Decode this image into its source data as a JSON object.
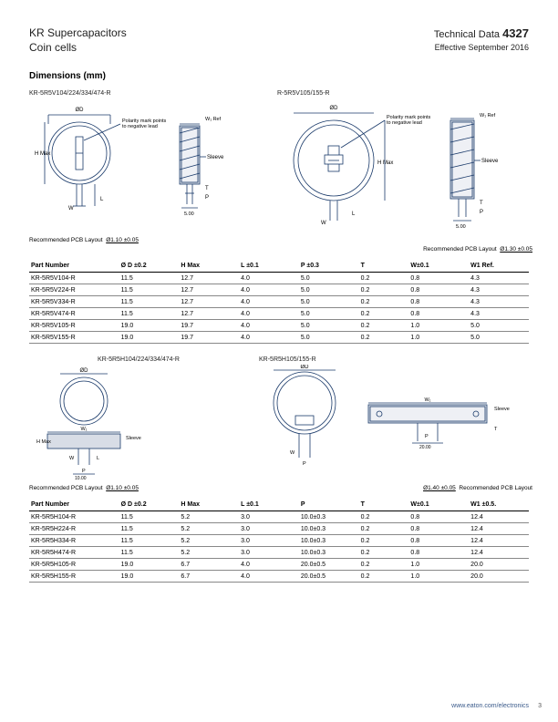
{
  "header": {
    "title_line1": "KR Supercapacitors",
    "title_line2": "Coin cells",
    "tech_data_label": "Technical Data",
    "tech_data_number": "4327",
    "effective": "Effective September 2016"
  },
  "section_title": "Dimensions (mm)",
  "diagrams_top": {
    "left_label": "KR-5R5V104/224/334/474-R",
    "right_label": "R-5R5V105/155-R",
    "polarity_note": "Polarity mark points\nto negative lead",
    "sleeve_label": "Sleeve",
    "w1_ref": "W₁ Ref",
    "hmax": "H Max",
    "phi_d": "ØD",
    "pcb_left": "Recommended PCB Layout",
    "pcb_left_hole": "Ø1.10 ±0.05",
    "pcb_right": "Recommended PCB Layout",
    "pcb_right_hole": "Ø1.30 ±0.05",
    "dim_T": "T",
    "dim_P": "P",
    "dim_L": "L",
    "dim_W": "W",
    "dim_500": "5.00"
  },
  "table1": {
    "columns": [
      "Part Number",
      "Ø D ±0.2",
      "H Max",
      "L ±0.1",
      "P ±0.3",
      "T",
      "W±0.1",
      "W1 Ref."
    ],
    "rows": [
      [
        "KR-5R5V104-R",
        "11.5",
        "12.7",
        "4.0",
        "5.0",
        "0.2",
        "0.8",
        "4.3"
      ],
      [
        "KR-5R5V224-R",
        "11.5",
        "12.7",
        "4.0",
        "5.0",
        "0.2",
        "0.8",
        "4.3"
      ],
      [
        "KR-5R5V334-R",
        "11.5",
        "12.7",
        "4.0",
        "5.0",
        "0.2",
        "0.8",
        "4.3"
      ],
      [
        "KR-5R5V474-R",
        "11.5",
        "12.7",
        "4.0",
        "5.0",
        "0.2",
        "0.8",
        "4.3"
      ],
      [
        "KR-5R5V105-R",
        "19.0",
        "19.7",
        "4.0",
        "5.0",
        "0.2",
        "1.0",
        "5.0"
      ],
      [
        "KR-5R5V155-R",
        "19.0",
        "19.7",
        "4.0",
        "5.0",
        "0.2",
        "1.0",
        "5.0"
      ]
    ]
  },
  "diagrams_bottom": {
    "left_label": "KR-5R5H104/224/334/474-R",
    "right_label": "KR-5R5H105/155-R",
    "sleeve_label": "Sleeve",
    "w1_label": "W₁",
    "hmax": "H Max",
    "phi_d": "ØD",
    "pcb_left": "Recommended PCB Layout",
    "pcb_left_hole": "Ø1.10 ±0.05",
    "pcb_right": "Recommended PCB Layout",
    "pcb_right_hole": "Ø1.40 ±0.05",
    "dim_T": "T",
    "dim_P": "P",
    "dim_L": "L",
    "dim_W": "W",
    "dim_1000": "10.00",
    "dim_2000": "20.00"
  },
  "table2": {
    "columns": [
      "Part Number",
      "Ø D ±0.2",
      "H Max",
      "L ±0.1",
      "P",
      "T",
      "W±0.1",
      "W1 ±0.5."
    ],
    "rows": [
      [
        "KR-5R5H104-R",
        "11.5",
        "5.2",
        "3.0",
        "10.0±0.3",
        "0.2",
        "0.8",
        "12.4"
      ],
      [
        "KR-5R5H224-R",
        "11.5",
        "5.2",
        "3.0",
        "10.0±0.3",
        "0.2",
        "0.8",
        "12.4"
      ],
      [
        "KR-5R5H334-R",
        "11.5",
        "5.2",
        "3.0",
        "10.0±0.3",
        "0.2",
        "0.8",
        "12.4"
      ],
      [
        "KR-5R5H474-R",
        "11.5",
        "5.2",
        "3.0",
        "10.0±0.3",
        "0.2",
        "0.8",
        "12.4"
      ],
      [
        "KR-5R5H105-R",
        "19.0",
        "6.7",
        "4.0",
        "20.0±0.5",
        "0.2",
        "1.0",
        "20.0"
      ],
      [
        "KR-5R5H155-R",
        "19.0",
        "6.7",
        "4.0",
        "20.0±0.5",
        "0.2",
        "1.0",
        "20.0"
      ]
    ]
  },
  "footer_url": "www.eaton.com/electronics",
  "page_number": "3",
  "colors": {
    "stroke": "#1a3a6a",
    "fill_light": "#e8ecf2",
    "hatch": "#9aa8bf"
  }
}
